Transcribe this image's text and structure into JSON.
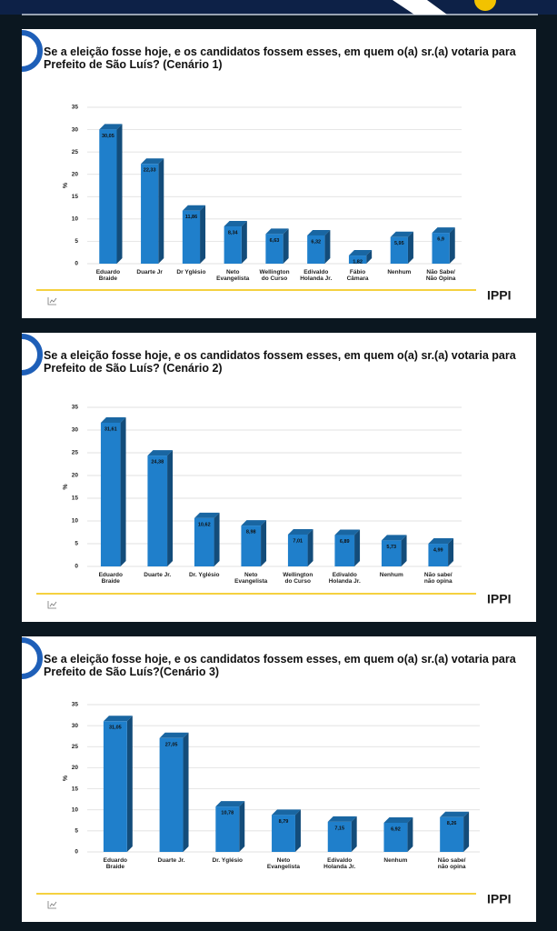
{
  "chart_data": [
    {
      "type": "bar",
      "title": "Se a eleição fosse hoje, e os candidatos fossem esses,  em quem o(a) sr.(a) votaria para Prefeito de São Luís? (Cenário 1)",
      "ylabel": "%",
      "brand": "IPPI",
      "categories": [
        "Eduardo\nBraide",
        "Duarte Jr",
        "Dr Yglésio",
        "Neto\nEvangelista",
        "Wellington\ndo Curso",
        "Edivaldo\nHolanda Jr.",
        "Fábio\nCâmara",
        "Nenhum",
        "Não Sabe/\nNão Opina"
      ],
      "values": [
        30.05,
        22.33,
        11.86,
        8.34,
        6.63,
        6.32,
        1.82,
        5.95,
        6.9
      ],
      "value_labels": [
        "30,05",
        "22,33",
        "11,86",
        "8,34",
        "6,63",
        "6,32",
        "1,82",
        "5,95",
        "6,9"
      ],
      "color": "#1f7fcb",
      "ylim": [
        0,
        35
      ],
      "yticks": [
        0,
        5,
        10,
        15,
        20,
        25,
        30,
        35
      ],
      "grid": true
    },
    {
      "type": "bar",
      "title": "Se a eleição fosse hoje, e os candidatos fossem esses,  em quem o(a) sr.(a) votaria para Prefeito de São Luís? (Cenário 2)",
      "ylabel": "%",
      "brand": "IPPI",
      "categories": [
        "Eduardo\nBraide",
        "Duarte Jr.",
        "Dr. Yglésio",
        "Neto\nEvangelista",
        "Wellington\ndo Curso",
        "Edivaldo\nHolanda Jr.",
        "Nenhum",
        "Não sabe/\nnão opina"
      ],
      "values": [
        31.61,
        24.38,
        10.62,
        8.98,
        7.01,
        6.89,
        5.73,
        4.99
      ],
      "value_labels": [
        "31,61",
        "24,38",
        "10,62",
        "8,98",
        "7,01",
        "6,89",
        "5,73",
        "4,99"
      ],
      "color": "#1f7fcb",
      "ylim": [
        0,
        35
      ],
      "yticks": [
        0,
        5,
        10,
        15,
        20,
        25,
        30,
        35
      ],
      "grid": true
    },
    {
      "type": "bar",
      "title": "Se a eleição fosse hoje, e os candidatos fossem esses, em quem o(a) sr.(a) votaria para Prefeito de São Luís?(Cenário 3)",
      "ylabel": "%",
      "brand": "IPPI",
      "categories": [
        "Eduardo\nBraide",
        "Duarte Jr.",
        "Dr. Yglésio",
        "Neto\nEvangelista",
        "Edivaldo\nHolanda Jr.",
        "Nenhum",
        "Não sabe/\nnão opina"
      ],
      "values": [
        31.05,
        27.05,
        10.78,
        8.79,
        7.15,
        6.92,
        8.26
      ],
      "value_labels": [
        "31,05",
        "27,05",
        "10,78",
        "8,79",
        "7,15",
        "6,92",
        "8,26"
      ],
      "color": "#1f7fcb",
      "ylim": [
        0,
        35
      ],
      "yticks": [
        0,
        5,
        10,
        15,
        20,
        25,
        30,
        35
      ],
      "grid": true
    }
  ]
}
